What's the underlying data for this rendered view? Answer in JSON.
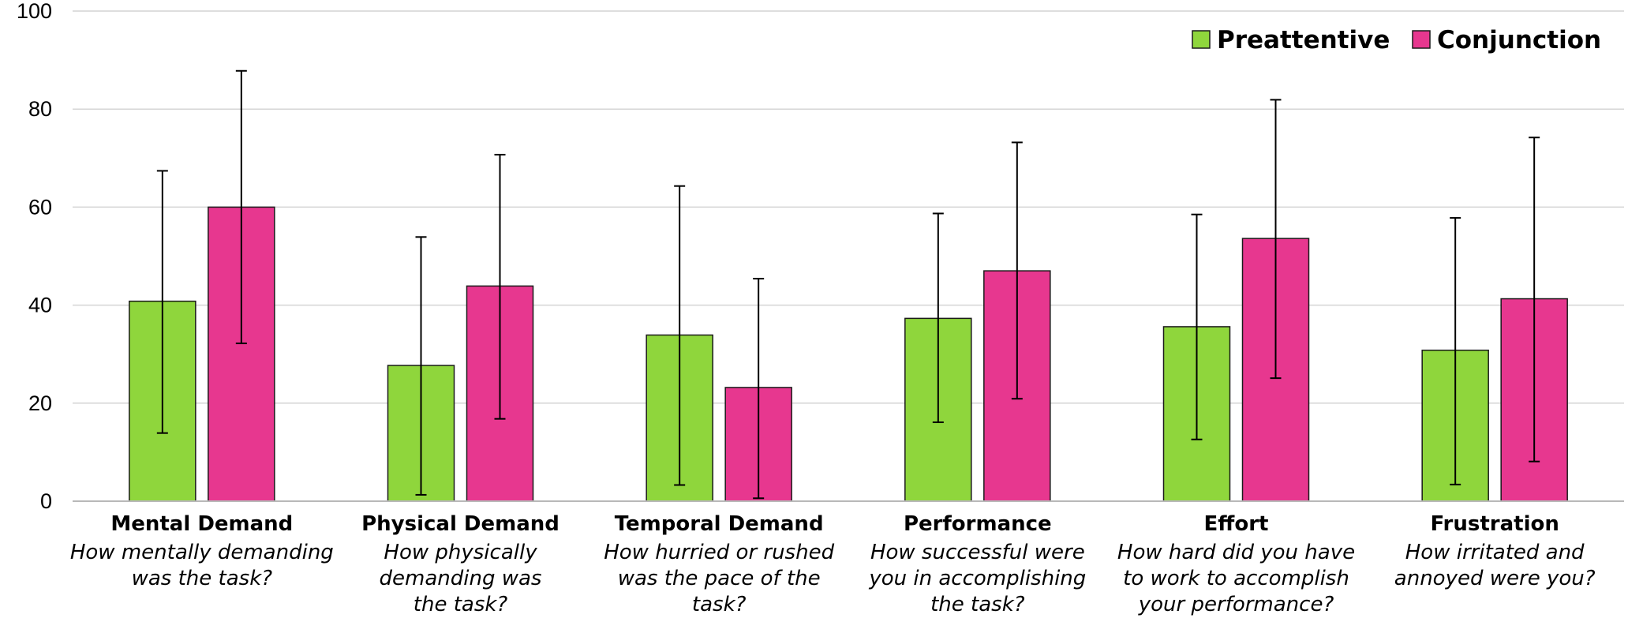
{
  "chart_data": {
    "type": "bar",
    "title": "",
    "xlabel": "",
    "ylabel": "",
    "ylim": [
      0,
      100
    ],
    "yticks": [
      "0",
      "20",
      "40",
      "60",
      "80",
      "100"
    ],
    "grid": true,
    "legend_position": "top-right",
    "categories": [
      {
        "title": "Mental Demand",
        "description": [
          "How mentally demanding",
          "was the task?"
        ]
      },
      {
        "title": "Physical Demand",
        "description": [
          "How physically",
          "demanding was",
          "the task?"
        ]
      },
      {
        "title": "Temporal Demand",
        "description": [
          "How hurried or rushed",
          "was the pace of the",
          "task?"
        ]
      },
      {
        "title": "Performance",
        "description": [
          "How successful were",
          "you in accomplishing",
          "the task?"
        ]
      },
      {
        "title": "Effort",
        "description": [
          "How hard did you have",
          "to work to accomplish",
          "your performance?"
        ]
      },
      {
        "title": "Frustration",
        "description": [
          "How irritated and",
          "annoyed were you?"
        ]
      }
    ],
    "series": [
      {
        "name": "Preattentive",
        "color": "#8fd63c",
        "values": [
          40.8,
          27.7,
          33.9,
          37.3,
          35.6,
          30.8
        ],
        "error_low": [
          13.9,
          1.3,
          3.3,
          16.1,
          12.6,
          3.4
        ],
        "error_high": [
          67.4,
          53.9,
          64.3,
          58.7,
          58.5,
          57.8
        ]
      },
      {
        "name": "Conjunction",
        "color": "#e7378f",
        "values": [
          60.0,
          43.9,
          23.2,
          47.0,
          53.6,
          41.3
        ],
        "error_low": [
          32.2,
          16.8,
          0.6,
          20.9,
          25.1,
          8.1
        ],
        "error_high": [
          87.8,
          70.7,
          45.4,
          73.2,
          81.9,
          74.2
        ]
      }
    ]
  }
}
